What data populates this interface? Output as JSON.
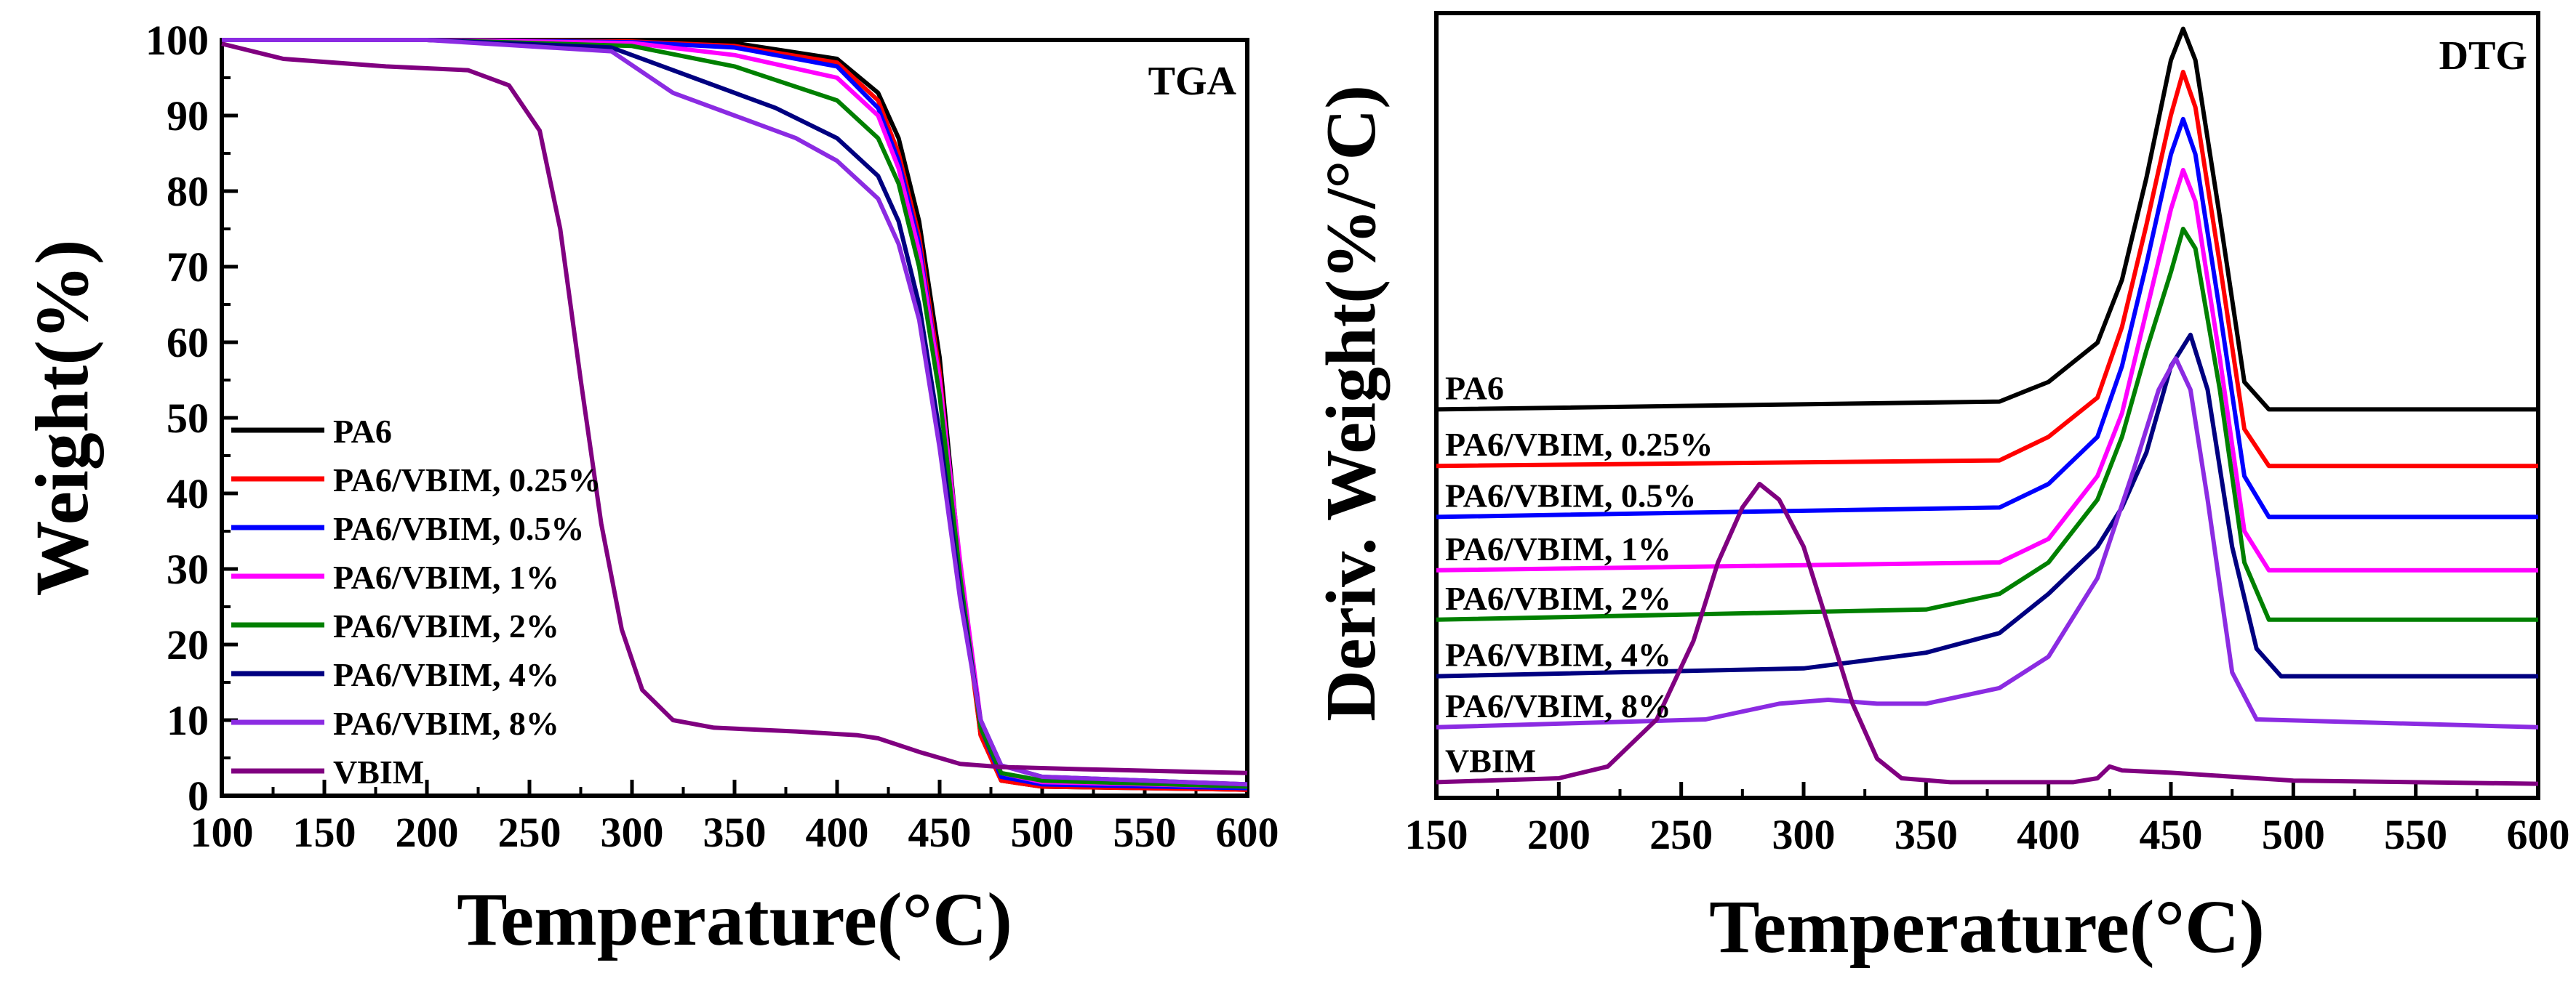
{
  "chart_data": [
    {
      "type": "line",
      "id": "tga",
      "annotation": "TGA",
      "xlabel": "Temperature(°C)",
      "ylabel": "Weight(%)",
      "xlim": [
        100,
        600
      ],
      "ylim": [
        0,
        100
      ],
      "xticks": [
        "100",
        "150",
        "200",
        "250",
        "300",
        "350",
        "400",
        "450",
        "500",
        "550",
        "600"
      ],
      "yticks": [
        "0",
        "10",
        "20",
        "30",
        "40",
        "50",
        "60",
        "70",
        "80",
        "90",
        "100"
      ],
      "legend_position": "center-left",
      "series": [
        {
          "name": "PA6",
          "color": "#000000",
          "points": [
            [
              100,
              100
            ],
            [
              200,
              100
            ],
            [
              300,
              100
            ],
            [
              350,
              99.6
            ],
            [
              400,
              97.5
            ],
            [
              420,
              93
            ],
            [
              430,
              87
            ],
            [
              440,
              76
            ],
            [
              450,
              58
            ],
            [
              460,
              30
            ],
            [
              470,
              8
            ],
            [
              480,
              2
            ],
            [
              500,
              1.2
            ],
            [
              600,
              0.8
            ]
          ]
        },
        {
          "name": "PA6/VBIM, 0.25%",
          "color": "#ff0000",
          "points": [
            [
              100,
              100
            ],
            [
              200,
              100
            ],
            [
              300,
              99.8
            ],
            [
              350,
              99.2
            ],
            [
              400,
              97
            ],
            [
              420,
              92
            ],
            [
              430,
              85
            ],
            [
              440,
              74
            ],
            [
              450,
              56
            ],
            [
              460,
              29
            ],
            [
              470,
              8
            ],
            [
              480,
              2
            ],
            [
              500,
              1.2
            ],
            [
              600,
              0.8
            ]
          ]
        },
        {
          "name": "PA6/VBIM, 0.5%",
          "color": "#0000ff",
          "points": [
            [
              100,
              100
            ],
            [
              200,
              100
            ],
            [
              300,
              99.7
            ],
            [
              350,
              99
            ],
            [
              400,
              96.5
            ],
            [
              420,
              91
            ],
            [
              430,
              84
            ],
            [
              440,
              73
            ],
            [
              450,
              55
            ],
            [
              460,
              30
            ],
            [
              470,
              9
            ],
            [
              480,
              2.5
            ],
            [
              500,
              1.5
            ],
            [
              600,
              1
            ]
          ]
        },
        {
          "name": "PA6/VBIM, 1%",
          "color": "#ff00ff",
          "points": [
            [
              100,
              100
            ],
            [
              200,
              100
            ],
            [
              300,
              99.6
            ],
            [
              350,
              98
            ],
            [
              400,
              95
            ],
            [
              420,
              90
            ],
            [
              430,
              83
            ],
            [
              440,
              72
            ],
            [
              450,
              55
            ],
            [
              460,
              31
            ],
            [
              470,
              10
            ],
            [
              480,
              3
            ],
            [
              500,
              1.8
            ],
            [
              600,
              1.2
            ]
          ]
        },
        {
          "name": "PA6/VBIM, 2%",
          "color": "#008000",
          "points": [
            [
              100,
              100
            ],
            [
              200,
              100
            ],
            [
              300,
              99.2
            ],
            [
              350,
              96.5
            ],
            [
              400,
              92
            ],
            [
              420,
              87
            ],
            [
              430,
              81
            ],
            [
              440,
              70
            ],
            [
              450,
              53
            ],
            [
              460,
              29
            ],
            [
              470,
              9
            ],
            [
              480,
              3
            ],
            [
              500,
              2
            ],
            [
              600,
              1.2
            ]
          ]
        },
        {
          "name": "PA6/VBIM, 4%",
          "color": "#000080",
          "points": [
            [
              100,
              100
            ],
            [
              200,
              100
            ],
            [
              290,
              99
            ],
            [
              330,
              95
            ],
            [
              370,
              91
            ],
            [
              400,
              87
            ],
            [
              420,
              82
            ],
            [
              430,
              76
            ],
            [
              440,
              65
            ],
            [
              450,
              48
            ],
            [
              460,
              27
            ],
            [
              470,
              10
            ],
            [
              480,
              4
            ],
            [
              500,
              2.5
            ],
            [
              600,
              1.5
            ]
          ]
        },
        {
          "name": "PA6/VBIM, 8%",
          "color": "#8b2be2",
          "points": [
            [
              100,
              100
            ],
            [
              200,
              100
            ],
            [
              290,
              98.5
            ],
            [
              320,
              93
            ],
            [
              350,
              90
            ],
            [
              380,
              87
            ],
            [
              400,
              84
            ],
            [
              420,
              79
            ],
            [
              430,
              73
            ],
            [
              440,
              63
            ],
            [
              450,
              46
            ],
            [
              460,
              26
            ],
            [
              470,
              10
            ],
            [
              480,
              4
            ],
            [
              500,
              2.5
            ],
            [
              600,
              1.5
            ]
          ]
        },
        {
          "name": "VBIM",
          "color": "#800080",
          "points": [
            [
              100,
              99.5
            ],
            [
              130,
              97.5
            ],
            [
              180,
              96.5
            ],
            [
              220,
              96
            ],
            [
              240,
              94
            ],
            [
              255,
              88
            ],
            [
              265,
              75
            ],
            [
              275,
              55
            ],
            [
              285,
              36
            ],
            [
              295,
              22
            ],
            [
              305,
              14
            ],
            [
              320,
              10
            ],
            [
              340,
              9
            ],
            [
              380,
              8.5
            ],
            [
              410,
              8
            ],
            [
              420,
              7.6
            ],
            [
              440,
              5.8
            ],
            [
              460,
              4.2
            ],
            [
              480,
              3.8
            ],
            [
              520,
              3.5
            ],
            [
              600,
              3
            ]
          ]
        }
      ]
    },
    {
      "type": "line",
      "id": "dtg",
      "annotation": "DTG",
      "xlabel": "Temperature(°C)",
      "ylabel": "Deriv. Weight(%/°C)",
      "xlim": [
        150,
        600
      ],
      "ylim": [
        0,
        100
      ],
      "y_units": "arbitrary (stacked, no y tick labels)",
      "xticks": [
        "150",
        "200",
        "250",
        "300",
        "350",
        "400",
        "450",
        "500",
        "550",
        "600"
      ],
      "series": [
        {
          "name": "PA6",
          "color": "#000000",
          "baseline": 49.5,
          "points": [
            [
              150,
              49.5
            ],
            [
              380,
              50.5
            ],
            [
              400,
              53
            ],
            [
              420,
              58
            ],
            [
              430,
              66
            ],
            [
              440,
              79
            ],
            [
              450,
              94
            ],
            [
              455,
              98
            ],
            [
              460,
              94
            ],
            [
              470,
              74
            ],
            [
              480,
              53
            ],
            [
              490,
              49.5
            ],
            [
              600,
              49.5
            ]
          ]
        },
        {
          "name": "PA6/VBIM, 0.25%",
          "color": "#ff0000",
          "baseline": 42.3,
          "points": [
            [
              150,
              42.3
            ],
            [
              380,
              43
            ],
            [
              400,
              46
            ],
            [
              420,
              51
            ],
            [
              430,
              60
            ],
            [
              440,
              73
            ],
            [
              450,
              87
            ],
            [
              455,
              92.5
            ],
            [
              460,
              88
            ],
            [
              470,
              68
            ],
            [
              480,
              47
            ],
            [
              490,
              42.3
            ],
            [
              600,
              42.3
            ]
          ]
        },
        {
          "name": "PA6/VBIM, 0.5%",
          "color": "#0000ff",
          "baseline": 35.8,
          "points": [
            [
              150,
              35.8
            ],
            [
              380,
              37
            ],
            [
              400,
              40
            ],
            [
              410,
              43
            ],
            [
              420,
              46
            ],
            [
              430,
              55
            ],
            [
              440,
              68
            ],
            [
              450,
              82
            ],
            [
              455,
              86.5
            ],
            [
              460,
              82
            ],
            [
              470,
              62
            ],
            [
              480,
              41
            ],
            [
              490,
              35.8
            ],
            [
              600,
              35.8
            ]
          ]
        },
        {
          "name": "PA6/VBIM, 1%",
          "color": "#ff00ff",
          "baseline": 29,
          "points": [
            [
              150,
              29
            ],
            [
              380,
              30
            ],
            [
              400,
              33
            ],
            [
              410,
              37
            ],
            [
              420,
              41
            ],
            [
              430,
              49
            ],
            [
              440,
              62
            ],
            [
              450,
              75
            ],
            [
              455,
              80
            ],
            [
              460,
              76
            ],
            [
              470,
              56
            ],
            [
              480,
              34
            ],
            [
              490,
              29
            ],
            [
              600,
              29
            ]
          ]
        },
        {
          "name": "PA6/VBIM, 2%",
          "color": "#008000",
          "baseline": 22.7,
          "points": [
            [
              150,
              22.7
            ],
            [
              350,
              24
            ],
            [
              380,
              26
            ],
            [
              400,
              30
            ],
            [
              410,
              34
            ],
            [
              420,
              38
            ],
            [
              430,
              46
            ],
            [
              440,
              57
            ],
            [
              450,
              67
            ],
            [
              455,
              72.5
            ],
            [
              460,
              70
            ],
            [
              470,
              52
            ],
            [
              480,
              30
            ],
            [
              490,
              22.7
            ],
            [
              600,
              22.7
            ]
          ]
        },
        {
          "name": "PA6/VBIM, 4%",
          "color": "#000080",
          "baseline": 15.5,
          "points": [
            [
              150,
              15.5
            ],
            [
              300,
              16.5
            ],
            [
              350,
              18.5
            ],
            [
              380,
              21
            ],
            [
              400,
              26
            ],
            [
              420,
              32
            ],
            [
              430,
              37
            ],
            [
              440,
              44
            ],
            [
              450,
              55
            ],
            [
              458,
              59
            ],
            [
              465,
              52
            ],
            [
              475,
              32
            ],
            [
              485,
              19
            ],
            [
              495,
              15.5
            ],
            [
              600,
              15.5
            ]
          ]
        },
        {
          "name": "PA6/VBIM, 8%",
          "color": "#8b2be2",
          "baseline": 9,
          "points": [
            [
              150,
              9
            ],
            [
              260,
              10
            ],
            [
              290,
              12
            ],
            [
              310,
              12.5
            ],
            [
              330,
              12
            ],
            [
              350,
              12
            ],
            [
              380,
              14
            ],
            [
              400,
              18
            ],
            [
              420,
              28
            ],
            [
              435,
              42
            ],
            [
              445,
              52
            ],
            [
              452,
              56
            ],
            [
              458,
              52
            ],
            [
              465,
              38
            ],
            [
              475,
              16
            ],
            [
              485,
              10
            ],
            [
              600,
              9
            ]
          ]
        },
        {
          "name": "VBIM",
          "color": "#800080",
          "baseline": 2,
          "points": [
            [
              150,
              2
            ],
            [
              200,
              2.5
            ],
            [
              220,
              4
            ],
            [
              240,
              10
            ],
            [
              255,
              20
            ],
            [
              265,
              30
            ],
            [
              275,
              37
            ],
            [
              282,
              40
            ],
            [
              290,
              38
            ],
            [
              300,
              32
            ],
            [
              310,
              22
            ],
            [
              320,
              12
            ],
            [
              330,
              5
            ],
            [
              340,
              2.5
            ],
            [
              360,
              2
            ],
            [
              410,
              2
            ],
            [
              420,
              2.5
            ],
            [
              425,
              4
            ],
            [
              430,
              3.5
            ],
            [
              450,
              3.2
            ],
            [
              500,
              2.2
            ],
            [
              600,
              1.8
            ]
          ]
        }
      ]
    }
  ]
}
